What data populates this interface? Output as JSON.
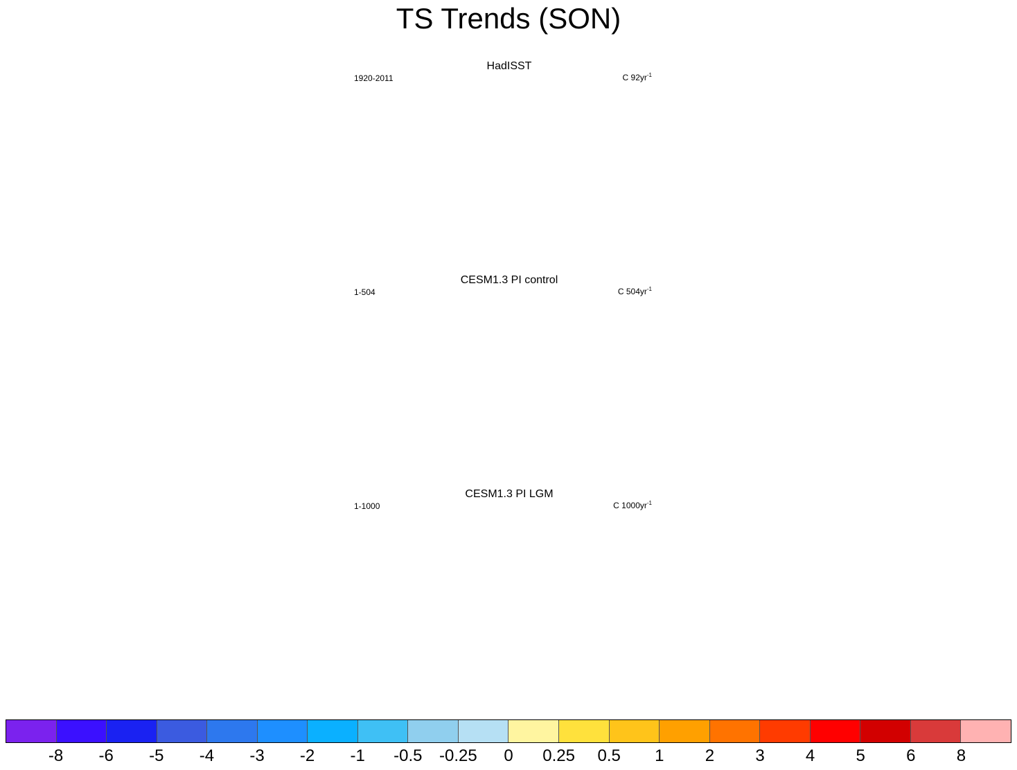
{
  "title": "TS Trends (SON)",
  "panels": [
    {
      "title": "HadISST",
      "left_label": "1920-2011",
      "right_label": "C 92yr",
      "right_sup": "-1",
      "pattern": "warm"
    },
    {
      "title": "CESM1.3 PI control",
      "left_label": "1-504",
      "right_label": "C 504yr",
      "right_sup": "-1",
      "pattern": "mixed"
    },
    {
      "title": "CESM1.3 PI LGM",
      "left_label": "1-1000",
      "right_label": "C 1000yr",
      "right_sup": "-1",
      "pattern": "cold"
    }
  ],
  "colorbar": {
    "colors": [
      "#7b22ee",
      "#3b10ff",
      "#1a22f2",
      "#3b5be0",
      "#2d78ee",
      "#1e8fff",
      "#0bb0ff",
      "#3fc0f5",
      "#90cfee",
      "#b6e0f4",
      "#fff5a0",
      "#ffe13c",
      "#ffc41a",
      "#ffa000",
      "#ff7300",
      "#ff3b00",
      "#ff0000",
      "#d20000",
      "#d93a3a",
      "#ffb2b2"
    ],
    "labels": [
      "-8",
      "-6",
      "-5",
      "-4",
      "-3",
      "-2",
      "-1",
      "-0.5",
      "-0.25",
      "0",
      "0.25",
      "0.5",
      "1",
      "2",
      "3",
      "4",
      "5",
      "6",
      "8"
    ]
  }
}
